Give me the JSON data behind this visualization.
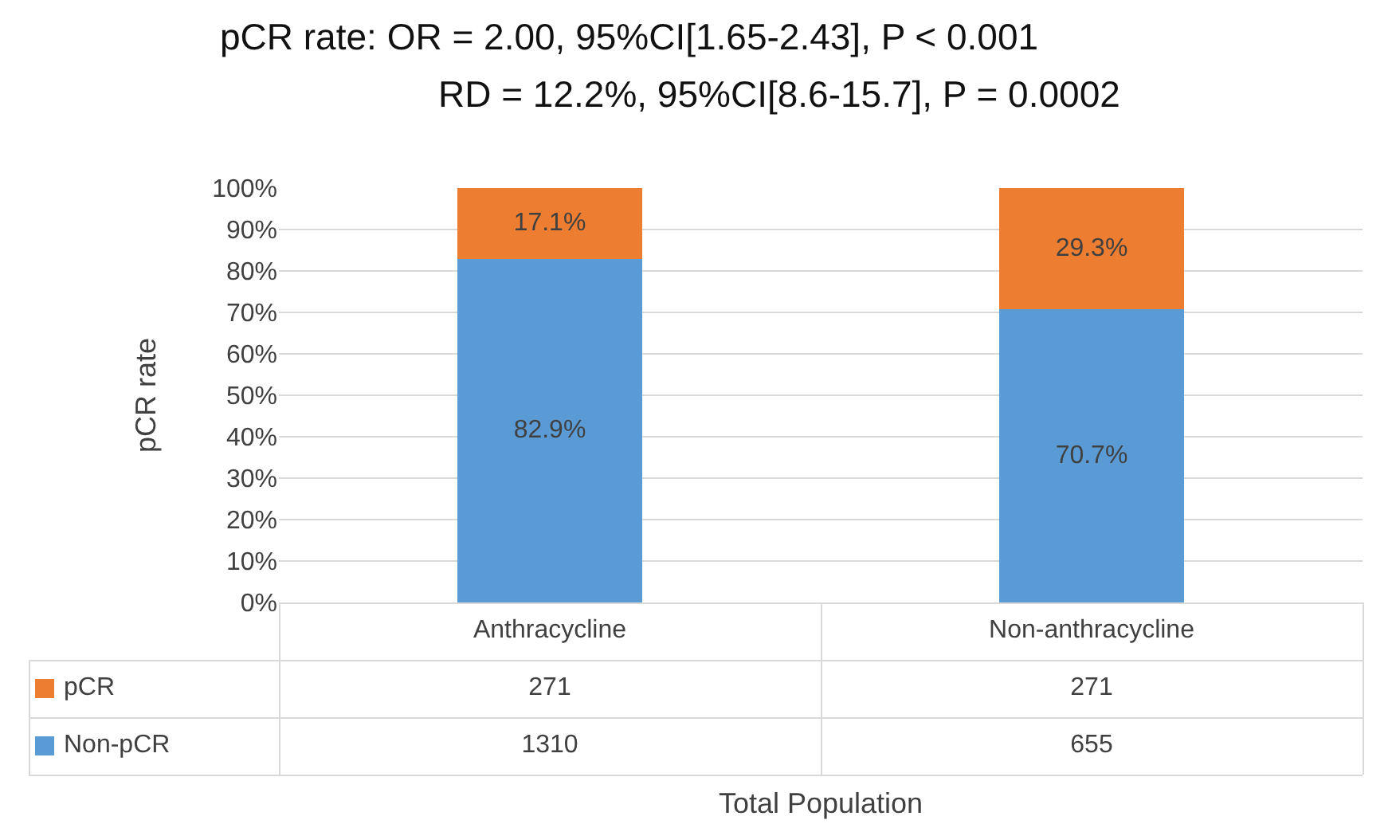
{
  "chart_data": {
    "type": "bar",
    "title": "pCR rate:  OR = 2.00, 95%CI[1.65-2.43], P < 0.001",
    "subtitle": "RD = 12.2%, 95%CI[8.6-15.7], P = 0.0002",
    "ylabel": "pCR rate",
    "xlabel": "Total Population",
    "categories": [
      "Anthracycline",
      "Non-anthracycline"
    ],
    "series": [
      {
        "name": "Non-pCR",
        "color": "#5b9bd5",
        "values": [
          82.9,
          70.7
        ],
        "value_labels": [
          "82.9%",
          "70.7%"
        ]
      },
      {
        "name": "pCR",
        "color": "#ed7d31",
        "values": [
          17.1,
          29.3
        ],
        "value_labels": [
          "17.1%",
          "29.3%"
        ]
      }
    ],
    "stacked": true,
    "ylim": [
      0,
      100
    ],
    "yticks": [
      {
        "value": 0,
        "label": "0%"
      },
      {
        "value": 10,
        "label": "10%"
      },
      {
        "value": 20,
        "label": "20%"
      },
      {
        "value": 30,
        "label": "30%"
      },
      {
        "value": 40,
        "label": "40%"
      },
      {
        "value": 50,
        "label": "50%"
      },
      {
        "value": 60,
        "label": "60%"
      },
      {
        "value": 70,
        "label": "70%"
      },
      {
        "value": 80,
        "label": "80%"
      },
      {
        "value": 90,
        "label": "90%"
      },
      {
        "value": 100,
        "label": "100%"
      }
    ],
    "grid": "y",
    "legend": "bottom",
    "annotations": [
      "271",
      "271",
      "1310",
      "655"
    ]
  }
}
